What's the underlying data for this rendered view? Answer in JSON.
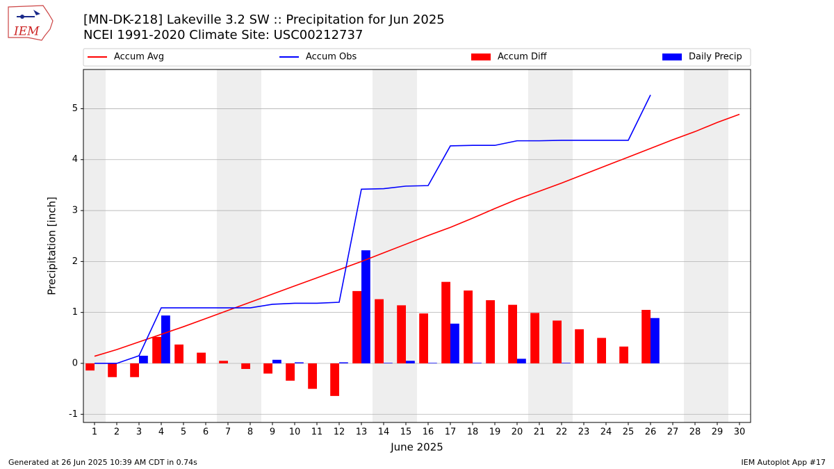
{
  "logo_text": "IEM",
  "footer": {
    "left": "Generated at 26 Jun 2025 10:39 AM CDT in 0.74s",
    "right": "IEM Autoplot App #17"
  },
  "chart_data": {
    "type": "combo",
    "title": "[MN-DK-218] Lakeville 3.2 SW :: Precipitation for Jun 2025",
    "subtitle": "NCEI 1991-2020 Climate Site: USC00212737",
    "x_label": "June 2025",
    "y_label": "Precipitation [inch]",
    "x": [
      1,
      2,
      3,
      4,
      5,
      6,
      7,
      8,
      9,
      10,
      11,
      12,
      13,
      14,
      15,
      16,
      17,
      18,
      19,
      20,
      21,
      22,
      23,
      24,
      25,
      26,
      27,
      28,
      29,
      30
    ],
    "xlim": [
      0.5,
      30.5
    ],
    "xticks": [
      1,
      2,
      3,
      4,
      5,
      6,
      7,
      8,
      9,
      10,
      11,
      12,
      13,
      14,
      15,
      16,
      17,
      18,
      19,
      20,
      21,
      22,
      23,
      24,
      25,
      26,
      27,
      28,
      29,
      30
    ],
    "ylim": [
      -1.16,
      5.77
    ],
    "yticks": [
      -1,
      0,
      1,
      2,
      3,
      4,
      5
    ],
    "grid": true,
    "shaded_spans": [
      [
        0.5,
        1.5
      ],
      [
        6.5,
        8.5
      ],
      [
        13.5,
        15.5
      ],
      [
        20.5,
        22.5
      ],
      [
        27.5,
        29.5
      ]
    ],
    "shade_color": "#eeeeee",
    "legend_position": "top",
    "series": [
      {
        "name": "Accum Avg",
        "kind": "line",
        "color": "#ff0000",
        "values": [
          0.14,
          0.27,
          0.42,
          0.57,
          0.72,
          0.88,
          1.04,
          1.2,
          1.36,
          1.52,
          1.68,
          1.84,
          2.0,
          2.17,
          2.34,
          2.51,
          2.67,
          2.85,
          3.04,
          3.22,
          3.38,
          3.54,
          3.71,
          3.88,
          4.05,
          4.22,
          4.39,
          4.55,
          4.73,
          4.89
        ]
      },
      {
        "name": "Accum Obs",
        "kind": "line",
        "color": "#0000ff",
        "values": [
          0,
          0,
          0.15,
          1.09,
          1.09,
          1.09,
          1.09,
          1.09,
          1.16,
          1.18,
          1.18,
          1.2,
          3.42,
          3.43,
          3.48,
          3.49,
          4.27,
          4.28,
          4.28,
          4.37,
          4.37,
          4.38,
          4.38,
          4.38,
          4.38,
          5.27,
          null,
          null,
          null,
          null
        ]
      },
      {
        "name": "Accum Diff",
        "kind": "bar",
        "offset": -0.2,
        "width": 0.4,
        "color": "#ff0000",
        "values": [
          -0.14,
          -0.27,
          -0.27,
          0.52,
          0.37,
          0.21,
          0.05,
          -0.11,
          -0.2,
          -0.34,
          -0.5,
          -0.64,
          1.42,
          1.26,
          1.14,
          0.98,
          1.6,
          1.43,
          1.24,
          1.15,
          0.99,
          0.84,
          0.67,
          0.5,
          0.33,
          1.05,
          null,
          null,
          null,
          null
        ]
      },
      {
        "name": "Daily Precip",
        "kind": "bar",
        "offset": 0.2,
        "width": 0.4,
        "color": "#0000ff",
        "values": [
          0,
          0,
          0.15,
          0.94,
          0,
          0,
          0,
          0,
          0.07,
          0.02,
          0,
          0.02,
          2.22,
          0.01,
          0.05,
          0.01,
          0.78,
          0.01,
          0,
          0.09,
          0,
          0.01,
          0,
          0,
          0,
          0.89,
          null,
          null,
          null,
          null
        ]
      }
    ]
  }
}
